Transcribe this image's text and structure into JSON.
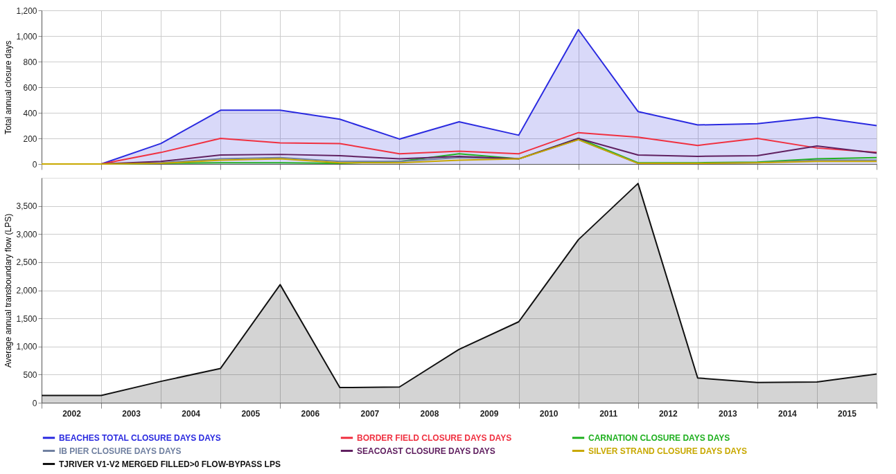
{
  "chart_data": [
    {
      "type": "line",
      "x": [
        2002,
        2003,
        2004,
        2005,
        2006,
        2007,
        2008,
        2009,
        2010,
        2011,
        2012,
        2013,
        2014,
        2015,
        2016
      ],
      "series": [
        {
          "name": "BEACHES TOTAL CLOSURE DAYS DAYS",
          "color": "#2a2ae0",
          "type": "area",
          "values": [
            0,
            0,
            160,
            420,
            420,
            350,
            195,
            330,
            225,
            1050,
            410,
            305,
            315,
            365,
            300
          ]
        },
        {
          "name": "BORDER FIELD CLOSURE DAYS DAYS",
          "color": "#f03040",
          "values": [
            0,
            0,
            90,
            200,
            165,
            160,
            80,
            100,
            80,
            245,
            210,
            145,
            200,
            125,
            90
          ]
        },
        {
          "name": "CARNATION CLOSURE DAYS DAYS",
          "color": "#20b020",
          "values": [
            0,
            0,
            5,
            10,
            10,
            5,
            20,
            80,
            40,
            200,
            10,
            10,
            15,
            40,
            50
          ]
        },
        {
          "name": "IB PIER CLOSURE DAYS DAYS",
          "color": "#7080a0",
          "values": [
            0,
            0,
            10,
            40,
            50,
            20,
            20,
            50,
            40,
            190,
            5,
            5,
            10,
            30,
            30
          ]
        },
        {
          "name": "SEACOAST CLOSURE DAYS DAYS",
          "color": "#602060",
          "values": [
            0,
            0,
            20,
            70,
            75,
            65,
            40,
            60,
            40,
            200,
            70,
            60,
            65,
            140,
            85
          ]
        },
        {
          "name": "SILVER STRAND CLOSURE DAYS DAYS",
          "color": "#c8a800",
          "values": [
            0,
            0,
            5,
            30,
            40,
            10,
            10,
            30,
            40,
            190,
            5,
            5,
            10,
            20,
            20
          ]
        }
      ],
      "ylabel": "Total annual closure days",
      "ylim": [
        0,
        1200
      ],
      "yticks": [
        0,
        200,
        400,
        600,
        800,
        {
          "value": 1000,
          "label": "1,000"
        },
        {
          "value": 1200,
          "label": "1,200"
        }
      ],
      "xlim": [
        2002,
        2016
      ],
      "xticks": [
        {
          "value": 2002,
          "label": null
        },
        {
          "value": 2003,
          "label": null
        },
        {
          "value": 2004,
          "label": null
        },
        {
          "value": 2005,
          "label": null
        },
        {
          "value": 2006,
          "label": null
        },
        {
          "value": 2007,
          "label": null
        },
        {
          "value": 2008,
          "label": null
        },
        {
          "value": 2009,
          "label": null
        },
        {
          "value": 2010,
          "label": null
        },
        {
          "value": 2011,
          "label": null
        },
        {
          "value": 2012,
          "label": null
        },
        {
          "value": 2013,
          "label": null
        },
        {
          "value": 2014,
          "label": null
        },
        {
          "value": 2015,
          "label": null
        },
        {
          "value": 2016,
          "label": null
        }
      ],
      "tick_labels": "y",
      "grid": true,
      "legend": "bottom",
      "marker": "none",
      "line_style": "solid"
    },
    {
      "type": "area",
      "x": [
        2002,
        2003,
        2004,
        2005,
        2006,
        2007,
        2008,
        2009,
        2010,
        2011,
        2012,
        2013,
        2014,
        2015,
        2016
      ],
      "series": [
        {
          "name": "TJRIVER V1-V2 MERGED FILLED>0 FLOW-BYPASS LPS",
          "color": "#111111",
          "values": [
            130,
            130,
            380,
            610,
            2100,
            270,
            280,
            950,
            1440,
            2900,
            3900,
            440,
            360,
            370,
            510
          ]
        }
      ],
      "ylabel": "Average annual transboundary flow (LPS)",
      "ylim": [
        0,
        4000
      ],
      "yticks": [
        0,
        500,
        {
          "value": 1000,
          "label": "1,000"
        },
        {
          "value": 1500,
          "label": "1,500"
        },
        {
          "value": 2000,
          "label": "2,000"
        },
        {
          "value": 2500,
          "label": "2,500"
        },
        {
          "value": 3000,
          "label": "3,000"
        },
        {
          "value": 3500,
          "label": "3,500"
        }
      ],
      "xlim": [
        2002,
        2016
      ],
      "xticks": [
        {
          "value": 2002,
          "label": null
        },
        {
          "value": 2002.5,
          "label": "2002"
        },
        {
          "value": 2003,
          "label": null
        },
        {
          "value": 2003.5,
          "label": "2003"
        },
        {
          "value": 2004,
          "label": null
        },
        {
          "value": 2004.5,
          "label": "2004"
        },
        {
          "value": 2005,
          "label": null
        },
        {
          "value": 2005.5,
          "label": "2005"
        },
        {
          "value": 2006,
          "label": null
        },
        {
          "value": 2006.5,
          "label": "2006"
        },
        {
          "value": 2007,
          "label": null
        },
        {
          "value": 2007.5,
          "label": "2007"
        },
        {
          "value": 2008,
          "label": null
        },
        {
          "value": 2008.5,
          "label": "2008"
        },
        {
          "value": 2009,
          "label": null
        },
        {
          "value": 2009.5,
          "label": "2009"
        },
        {
          "value": 2010,
          "label": null
        },
        {
          "value": 2010.5,
          "label": "2010"
        },
        {
          "value": 2011,
          "label": null
        },
        {
          "value": 2011.5,
          "label": "2011"
        },
        {
          "value": 2012,
          "label": null
        },
        {
          "value": 2012.5,
          "label": "2012"
        },
        {
          "value": 2013,
          "label": null
        },
        {
          "value": 2013.5,
          "label": "2013"
        },
        {
          "value": 2014,
          "label": null
        },
        {
          "value": 2014.5,
          "label": "2014"
        },
        {
          "value": 2015,
          "label": null
        },
        {
          "value": 2015.5,
          "label": "2015"
        },
        {
          "value": 2016,
          "label": null
        }
      ],
      "grid": true,
      "legend": "bottom",
      "marker": "none",
      "line_style": "solid"
    }
  ]
}
